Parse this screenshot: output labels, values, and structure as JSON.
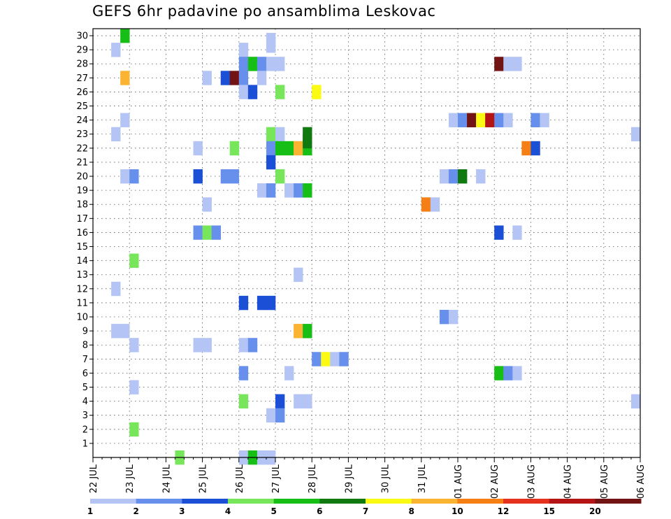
{
  "chart_data": {
    "type": "heatmap",
    "title": "GEFS 6hr padavine po ansamblima Leskovac",
    "x_ticks": [
      "22 JUL",
      "23 JUL",
      "24 JUL",
      "25 JUL",
      "26 JUL",
      "27 JUL",
      "28 JUL",
      "29 JUL",
      "30 JUL",
      "31 JUL",
      "01 AUG",
      "02 AUG",
      "03 AUG",
      "04 AUG",
      "05 AUG",
      "06 AUG"
    ],
    "y_ticks": [
      "1",
      "2",
      "3",
      "4",
      "5",
      "6",
      "7",
      "8",
      "9",
      "10",
      "11",
      "12",
      "13",
      "14",
      "15",
      "16",
      "17",
      "18",
      "19",
      "20",
      "21",
      "22",
      "23",
      "24",
      "25",
      "26",
      "27",
      "28",
      "29",
      "30"
    ],
    "xlim": [
      0,
      60
    ],
    "ylim": [
      0,
      30
    ],
    "grid": true,
    "colorbar": {
      "labels": [
        "1",
        "2",
        "3",
        "4",
        "5",
        "6",
        "7",
        "8",
        "10",
        "12",
        "15",
        "20"
      ],
      "colors": [
        "#b4c5f5",
        "#6690ec",
        "#1a4fd6",
        "#78e65a",
        "#16be16",
        "#107a10",
        "#fafa14",
        "#fab432",
        "#f57f14",
        "#e5321e",
        "#b41414",
        "#731414"
      ]
    },
    "cells": [
      {
        "t": 3,
        "m": 30,
        "c": 4
      },
      {
        "t": 19,
        "m": 29.7,
        "c": 0
      },
      {
        "t": 19,
        "m": 29.3,
        "c": 0
      },
      {
        "t": 2,
        "m": 29,
        "c": 0
      },
      {
        "t": 16,
        "m": 29,
        "c": 0
      },
      {
        "t": 16,
        "m": 28,
        "c": 1
      },
      {
        "t": 17,
        "m": 28,
        "c": 4
      },
      {
        "t": 18,
        "m": 28,
        "c": 1
      },
      {
        "t": 19,
        "m": 28,
        "c": 0
      },
      {
        "t": 20,
        "m": 28,
        "c": 0
      },
      {
        "t": 44,
        "m": 28,
        "c": 11
      },
      {
        "t": 45,
        "m": 28,
        "c": 0
      },
      {
        "t": 46,
        "m": 28,
        "c": 0
      },
      {
        "t": 3,
        "m": 27,
        "c": 7
      },
      {
        "t": 12,
        "m": 27,
        "c": 0
      },
      {
        "t": 14,
        "m": 27,
        "c": 2
      },
      {
        "t": 15,
        "m": 27,
        "c": 11
      },
      {
        "t": 16,
        "m": 27,
        "c": 1
      },
      {
        "t": 18,
        "m": 27,
        "c": 0
      },
      {
        "t": 16,
        "m": 26,
        "c": 0
      },
      {
        "t": 17,
        "m": 26,
        "c": 2
      },
      {
        "t": 20,
        "m": 26,
        "c": 3
      },
      {
        "t": 24,
        "m": 26,
        "c": 6
      },
      {
        "t": 3,
        "m": 24,
        "c": 0
      },
      {
        "t": 39,
        "m": 24,
        "c": 0
      },
      {
        "t": 40,
        "m": 24,
        "c": 1
      },
      {
        "t": 41,
        "m": 24,
        "c": 11
      },
      {
        "t": 42,
        "m": 24,
        "c": 6
      },
      {
        "t": 43,
        "m": 24,
        "c": 10
      },
      {
        "t": 44,
        "m": 24,
        "c": 1
      },
      {
        "t": 45,
        "m": 24,
        "c": 0
      },
      {
        "t": 48,
        "m": 24,
        "c": 1
      },
      {
        "t": 49,
        "m": 24,
        "c": 0
      },
      {
        "t": 2,
        "m": 23,
        "c": 0
      },
      {
        "t": 19,
        "m": 23,
        "c": 3
      },
      {
        "t": 20,
        "m": 23,
        "c": 0
      },
      {
        "t": 23,
        "m": 23,
        "c": 5
      },
      {
        "t": 59,
        "m": 23,
        "c": 0
      },
      {
        "t": 11,
        "m": 22,
        "c": 0
      },
      {
        "t": 15,
        "m": 22,
        "c": 3
      },
      {
        "t": 19,
        "m": 22,
        "c": 1
      },
      {
        "t": 20,
        "m": 22,
        "c": 4
      },
      {
        "t": 21,
        "m": 22,
        "c": 4
      },
      {
        "t": 22,
        "m": 22,
        "c": 7
      },
      {
        "t": 23,
        "m": 22,
        "c": 4
      },
      {
        "t": 23,
        "m": 22.5,
        "c": 5
      },
      {
        "t": 47,
        "m": 22,
        "c": 8
      },
      {
        "t": 48,
        "m": 22,
        "c": 2
      },
      {
        "t": 19,
        "m": 21,
        "c": 2
      },
      {
        "t": 3,
        "m": 20,
        "c": 0
      },
      {
        "t": 4,
        "m": 20,
        "c": 1
      },
      {
        "t": 11,
        "m": 20,
        "c": 2
      },
      {
        "t": 14,
        "m": 20,
        "c": 1
      },
      {
        "t": 15,
        "m": 20,
        "c": 1
      },
      {
        "t": 20,
        "m": 20,
        "c": 3
      },
      {
        "t": 38,
        "m": 20,
        "c": 0
      },
      {
        "t": 39,
        "m": 20,
        "c": 1
      },
      {
        "t": 40,
        "m": 20,
        "c": 5
      },
      {
        "t": 42,
        "m": 20,
        "c": 0
      },
      {
        "t": 18,
        "m": 19,
        "c": 0
      },
      {
        "t": 19,
        "m": 19,
        "c": 1
      },
      {
        "t": 21,
        "m": 19,
        "c": 0
      },
      {
        "t": 22,
        "m": 19,
        "c": 1
      },
      {
        "t": 23,
        "m": 19,
        "c": 4
      },
      {
        "t": 12,
        "m": 18,
        "c": 0
      },
      {
        "t": 36,
        "m": 18,
        "c": 8
      },
      {
        "t": 37,
        "m": 18,
        "c": 0
      },
      {
        "t": 11,
        "m": 16,
        "c": 1
      },
      {
        "t": 12,
        "m": 16,
        "c": 3
      },
      {
        "t": 13,
        "m": 16,
        "c": 1
      },
      {
        "t": 44,
        "m": 16,
        "c": 2
      },
      {
        "t": 46,
        "m": 16,
        "c": 0
      },
      {
        "t": 4,
        "m": 14,
        "c": 3
      },
      {
        "t": 22,
        "m": 13,
        "c": 0
      },
      {
        "t": 2,
        "m": 12,
        "c": 0
      },
      {
        "t": 16,
        "m": 11,
        "c": 2
      },
      {
        "t": 18,
        "m": 11,
        "c": 2
      },
      {
        "t": 19,
        "m": 11,
        "c": 2
      },
      {
        "t": 38,
        "m": 10,
        "c": 1
      },
      {
        "t": 39,
        "m": 10,
        "c": 0
      },
      {
        "t": 2,
        "m": 9,
        "c": 0
      },
      {
        "t": 3,
        "m": 9,
        "c": 0
      },
      {
        "t": 22,
        "m": 9,
        "c": 7
      },
      {
        "t": 23,
        "m": 9,
        "c": 4
      },
      {
        "t": 4,
        "m": 8,
        "c": 0
      },
      {
        "t": 11,
        "m": 8,
        "c": 0
      },
      {
        "t": 12,
        "m": 8,
        "c": 0
      },
      {
        "t": 16,
        "m": 8,
        "c": 0
      },
      {
        "t": 17,
        "m": 8,
        "c": 1
      },
      {
        "t": 24,
        "m": 7,
        "c": 1
      },
      {
        "t": 25,
        "m": 7,
        "c": 6
      },
      {
        "t": 26,
        "m": 7,
        "c": 0
      },
      {
        "t": 27,
        "m": 7,
        "c": 1
      },
      {
        "t": 16,
        "m": 6,
        "c": 1
      },
      {
        "t": 21,
        "m": 6,
        "c": 0
      },
      {
        "t": 44,
        "m": 6,
        "c": 4
      },
      {
        "t": 45,
        "m": 6,
        "c": 1
      },
      {
        "t": 46,
        "m": 6,
        "c": 0
      },
      {
        "t": 4,
        "m": 5,
        "c": 0
      },
      {
        "t": 16,
        "m": 4,
        "c": 3
      },
      {
        "t": 20,
        "m": 4,
        "c": 2
      },
      {
        "t": 22,
        "m": 4,
        "c": 0
      },
      {
        "t": 23,
        "m": 4,
        "c": 0
      },
      {
        "t": 59,
        "m": 4,
        "c": 0
      },
      {
        "t": 19,
        "m": 3,
        "c": 0
      },
      {
        "t": 20,
        "m": 3,
        "c": 1
      },
      {
        "t": 4,
        "m": 2,
        "c": 3
      },
      {
        "t": 9,
        "m": 0,
        "c": 3
      },
      {
        "t": 16,
        "m": 0,
        "c": 0
      },
      {
        "t": 17,
        "m": 0,
        "c": 4
      },
      {
        "t": 18,
        "m": 0,
        "c": 0
      },
      {
        "t": 19,
        "m": 0,
        "c": 0
      }
    ]
  }
}
